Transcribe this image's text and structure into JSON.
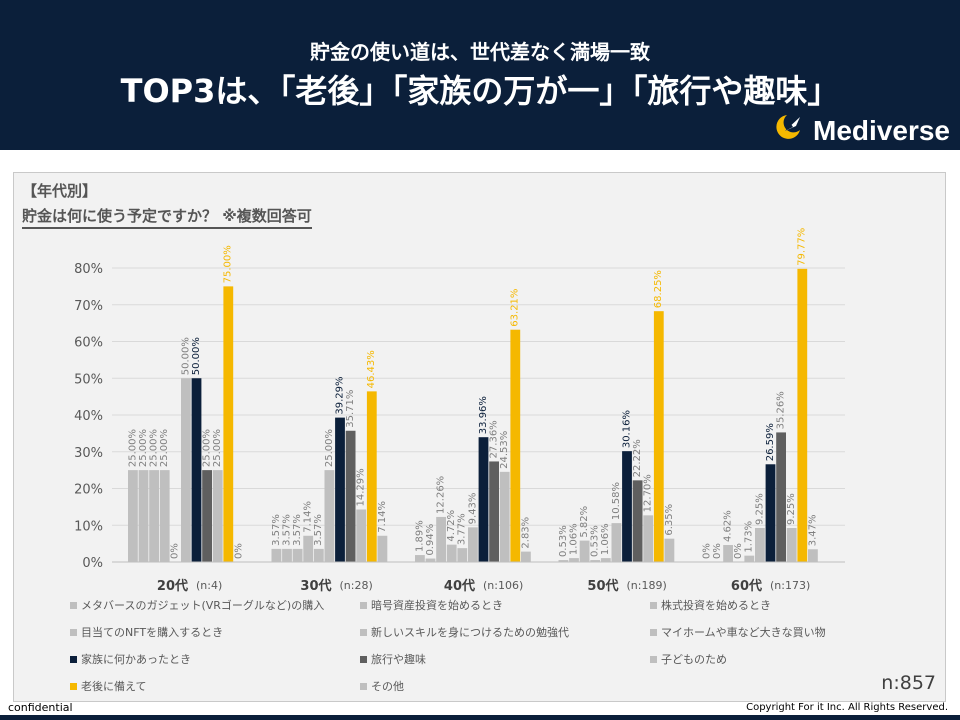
{
  "header": {
    "subtitle": "貯金の使い道は、世代差なく満場一致",
    "title": "TOP3は、「老後」「家族の万が一」「旅行や趣味」",
    "logo_text": "Mediverse",
    "background_color": "#0b1f3a"
  },
  "question": {
    "tag": "【年代別】",
    "text": "貯金は何に使う予定ですか？ ※複数回答可"
  },
  "chart_data": {
    "type": "bar",
    "ylim": [
      0,
      80
    ],
    "y_ticks": [
      "0%",
      "10%",
      "20%",
      "30%",
      "40%",
      "50%",
      "60%",
      "70%",
      "80%"
    ],
    "y_tick_values": [
      0,
      10,
      20,
      30,
      40,
      50,
      60,
      70,
      80
    ],
    "grid": true,
    "categories": [
      "20代",
      "30代",
      "40代",
      "50代",
      "60代"
    ],
    "category_n": [
      "(n:4)",
      "(n:28)",
      "(n:106)",
      "(n:189)",
      "(n:173)"
    ],
    "series": [
      {
        "name": "メタバースのガジェット(VRゴーグルなど)の購入",
        "color": "#bfbfbf",
        "values": [
          25.0,
          3.57,
          1.89,
          0.53,
          0.0
        ],
        "labels": [
          "25.00%",
          "3.57%",
          "1.89%",
          "0.53%",
          "0%"
        ]
      },
      {
        "name": "暗号資産投資を始めるとき",
        "color": "#bfbfbf",
        "values": [
          25.0,
          3.57,
          0.94,
          1.06,
          0.0
        ],
        "labels": [
          "25.00%",
          "3.57%",
          "0.94%",
          "1.06%",
          "0%"
        ]
      },
      {
        "name": "株式投資を始めるとき",
        "color": "#bfbfbf",
        "values": [
          25.0,
          3.57,
          12.26,
          5.82,
          4.62
        ],
        "labels": [
          "25.00%",
          "3.57%",
          "12.26%",
          "5.82%",
          "4.62%"
        ]
      },
      {
        "name": "目当てのNFTを購入するとき",
        "color": "#bfbfbf",
        "values": [
          25.0,
          7.14,
          4.72,
          0.53,
          0.0
        ],
        "labels": [
          "25.00%",
          "7.14%",
          "4.72%",
          "0.53%",
          "0%"
        ]
      },
      {
        "name": "新しいスキルを身につけるための勉強代",
        "color": "#bfbfbf",
        "values": [
          0.0,
          3.57,
          3.77,
          1.06,
          1.73
        ],
        "labels": [
          "0%",
          "3.57%",
          "3.77%",
          "1.06%",
          "1.73%"
        ]
      },
      {
        "name": "マイホームや車など大きな買い物",
        "color": "#bfbfbf",
        "values": [
          50.0,
          25.0,
          9.43,
          10.58,
          9.25
        ],
        "labels": [
          "50.00%",
          "25.00%",
          "9.43%",
          "10.58%",
          "9.25%"
        ]
      },
      {
        "name": "家族に何かあったとき",
        "color": "#0b1f3a",
        "values": [
          50.0,
          39.29,
          33.96,
          30.16,
          26.59
        ],
        "labels": [
          "50.00%",
          "39.29%",
          "33.96%",
          "30.16%",
          "26.59%"
        ]
      },
      {
        "name": "旅行や趣味",
        "color": "#5f5f5f",
        "values": [
          25.0,
          35.71,
          27.36,
          22.22,
          35.26
        ],
        "labels": [
          "25.00%",
          "35.71%",
          "27.36%",
          "22.22%",
          "35.26%"
        ]
      },
      {
        "name": "子どものため",
        "color": "#bfbfbf",
        "values": [
          25.0,
          14.29,
          24.53,
          12.7,
          9.25
        ],
        "labels": [
          "25.00%",
          "14.29%",
          "24.53%",
          "12.70%",
          "9.25%"
        ]
      },
      {
        "name": "老後に備えて",
        "color": "#f5b800",
        "values": [
          75.0,
          46.43,
          63.21,
          68.25,
          79.77
        ],
        "labels": [
          "75.00%",
          "46.43%",
          "63.21%",
          "68.25%",
          "79.77%"
        ]
      },
      {
        "name": "その他",
        "color": "#bfbfbf",
        "values": [
          0.0,
          7.14,
          2.83,
          6.35,
          3.47
        ],
        "labels": [
          "0%",
          "7.14%",
          "2.83%",
          "6.35%",
          "3.47%"
        ]
      }
    ],
    "legend_position": "bottom"
  },
  "total_n": "n:857",
  "footer": {
    "left": "confidential",
    "right": "Copyright For it Inc. All Rights Reserved."
  }
}
